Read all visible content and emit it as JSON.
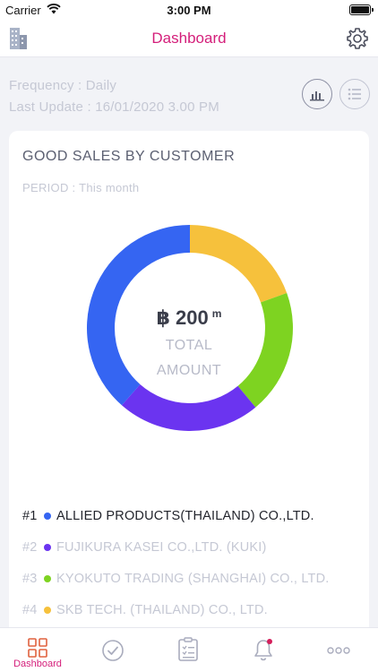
{
  "status_bar": {
    "carrier": "Carrier",
    "time": "3:00 PM"
  },
  "nav": {
    "title": "Dashboard"
  },
  "info": {
    "frequency": "Frequency : Daily",
    "last_update": "Last Update : 16/01/2020 3.00 PM"
  },
  "card": {
    "title": "GOOD SALES BY CUSTOMER",
    "period": "PERIOD : This month",
    "center": {
      "amount": "฿ 200",
      "unit": "m",
      "label_line1": "TOTAL",
      "label_line2": "AMOUNT"
    }
  },
  "chart_data": {
    "type": "pie",
    "values": [
      0.195,
      0.195,
      0.225,
      0.385
    ],
    "colors": [
      "#f6c13c",
      "#7ed321",
      "#6b34f0",
      "#3565f2"
    ],
    "inner_text": "฿ 200 m TOTAL AMOUNT"
  },
  "legend": [
    {
      "rank": "#1",
      "name": "ALLIED PRODUCTS(THAILAND) CO.,LTD.",
      "color": "#3565f2"
    },
    {
      "rank": "#2",
      "name": "FUJIKURA KASEI CO.,LTD. (KUKI)",
      "color": "#6b34f0"
    },
    {
      "rank": "#3",
      "name": "KYOKUTO TRADING (SHANGHAI) CO., LTD.",
      "color": "#7ed321"
    },
    {
      "rank": "#4",
      "name": "SKB TECH. (THAILAND) CO., LTD.",
      "color": "#f6c13c"
    }
  ],
  "tabs": [
    {
      "label": "Dashboard",
      "icon": "dashboard-grid-icon"
    },
    {
      "label": "",
      "icon": "check-circle-icon"
    },
    {
      "label": "",
      "icon": "clipboard-list-icon"
    },
    {
      "label": "",
      "icon": "bell-icon"
    },
    {
      "label": "",
      "icon": "more-dots-icon"
    }
  ]
}
